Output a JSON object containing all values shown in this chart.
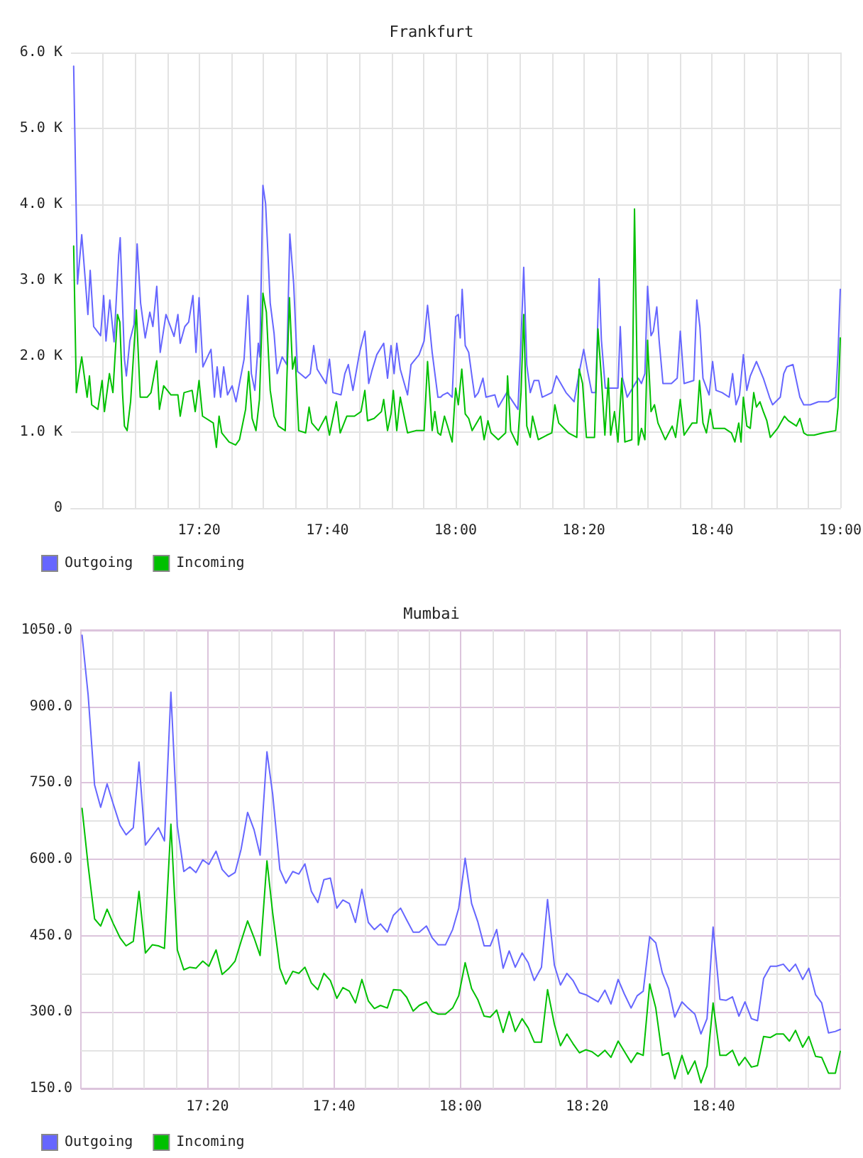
{
  "chart_data": [
    {
      "type": "line",
      "title": "Frankfurt",
      "series": [
        {
          "name": "Outgoing",
          "color": "#6666ff",
          "x": [
            17.007,
            17.017,
            17.028,
            17.038,
            17.044,
            17.05,
            17.059,
            17.077,
            17.085,
            17.091,
            17.101,
            17.112,
            17.124,
            17.128,
            17.139,
            17.144,
            17.153,
            17.164,
            17.172,
            17.181,
            17.193,
            17.205,
            17.213,
            17.223,
            17.232,
            17.247,
            17.268,
            17.278,
            17.284,
            17.296,
            17.306,
            17.317,
            17.325,
            17.333,
            17.343,
            17.364,
            17.373,
            17.38,
            17.389,
            17.397,
            17.407,
            17.419,
            17.429,
            17.45,
            17.46,
            17.469,
            17.478,
            17.487,
            17.491,
            17.499,
            17.506,
            17.518,
            17.528,
            17.536,
            17.549,
            17.561,
            17.569,
            17.579,
            17.589,
            17.61,
            17.622,
            17.631,
            17.64,
            17.663,
            17.672,
            17.681,
            17.702,
            17.712,
            17.721,
            17.733,
            17.751,
            17.764,
            17.774,
            17.782,
            17.795,
            17.813,
            17.823,
            17.832,
            17.84,
            17.847,
            17.856,
            17.875,
            17.884,
            17.905,
            17.918,
            17.927,
            17.939,
            17.954,
            17.961,
            17.967,
            17.979,
            17.991,
            18,
            18.007,
            18.012,
            18.017,
            18.025,
            18.034,
            18.043,
            18.05,
            18.059,
            18.071,
            18.079,
            18.102,
            18.111,
            18.133,
            18.162,
            18.17,
            18.177,
            18.185,
            18.194,
            18.204,
            18.216,
            18.225,
            18.25,
            18.262,
            18.287,
            18.308,
            18.323,
            18.333,
            18.342,
            18.354,
            18.364,
            18.373,
            18.379,
            18.389,
            18.422,
            18.428,
            18.434,
            18.446,
            18.475,
            18.483,
            18.492,
            18.499,
            18.508,
            18.514,
            18.523,
            18.529,
            18.539,
            18.561,
            18.576,
            18.584,
            18.594,
            18.619,
            18.627,
            18.635,
            18.643,
            18.659,
            18.668,
            18.677,
            18.693,
            18.711,
            18.72,
            18.729,
            18.738,
            18.748,
            18.757,
            18.766,
            18.782,
            18.8,
            18.816,
            18.824,
            18.844,
            18.853,
            18.861,
            18.877,
            18.895,
            18.905,
            18.922,
            18.943,
            18.969,
            18.988,
            18.994,
            19
          ],
          "values": [
            5820,
            2950,
            3600,
            2950,
            2550,
            3130,
            2390,
            2270,
            2800,
            2200,
            2740,
            2190,
            3330,
            3560,
            1960,
            1740,
            2200,
            2420,
            3480,
            2700,
            2240,
            2580,
            2390,
            2920,
            2050,
            2550,
            2260,
            2550,
            2170,
            2390,
            2450,
            2800,
            2050,
            2770,
            1860,
            2090,
            1460,
            1860,
            1460,
            1860,
            1490,
            1610,
            1400,
            1960,
            2800,
            1770,
            1550,
            2170,
            1990,
            4250,
            4010,
            2700,
            2300,
            1770,
            1990,
            1890,
            3610,
            2950,
            1800,
            1710,
            1770,
            2140,
            1830,
            1640,
            1960,
            1520,
            1490,
            1770,
            1890,
            1550,
            2070,
            2330,
            1640,
            1800,
            2020,
            2170,
            1710,
            2140,
            1770,
            2170,
            1830,
            1490,
            1890,
            2020,
            2200,
            2670,
            2050,
            1460,
            1460,
            1490,
            1520,
            1460,
            2520,
            2550,
            2240,
            2880,
            2140,
            2050,
            1710,
            1460,
            1520,
            1710,
            1460,
            1490,
            1330,
            1520,
            1300,
            2210,
            3170,
            1890,
            1520,
            1680,
            1680,
            1460,
            1520,
            1740,
            1520,
            1400,
            1830,
            2090,
            1830,
            1520,
            1520,
            3020,
            2210,
            1580,
            1580,
            2390,
            1710,
            1460,
            1710,
            1640,
            1770,
            2920,
            2270,
            2330,
            2650,
            2210,
            1640,
            1640,
            1710,
            2330,
            1640,
            1680,
            2740,
            2390,
            1710,
            1490,
            1930,
            1550,
            1520,
            1460,
            1770,
            1360,
            1490,
            2020,
            1550,
            1740,
            1930,
            1710,
            1460,
            1360,
            1460,
            1770,
            1860,
            1890,
            1460,
            1360,
            1360,
            1400,
            1400,
            1460,
            2020,
            2880
          ]
        },
        {
          "name": "Incoming",
          "color": "#00c000",
          "x": [
            17.007,
            17.014,
            17.021,
            17.028,
            17.042,
            17.048,
            17.054,
            17.07,
            17.081,
            17.087,
            17.1,
            17.109,
            17.121,
            17.127,
            17.134,
            17.139,
            17.146,
            17.155,
            17.17,
            17.18,
            17.198,
            17.208,
            17.223,
            17.23,
            17.241,
            17.26,
            17.278,
            17.284,
            17.294,
            17.315,
            17.323,
            17.333,
            17.342,
            17.37,
            17.378,
            17.385,
            17.392,
            17.411,
            17.428,
            17.438,
            17.454,
            17.462,
            17.471,
            17.481,
            17.49,
            17.499,
            17.508,
            17.518,
            17.528,
            17.539,
            17.557,
            17.568,
            17.576,
            17.583,
            17.592,
            17.61,
            17.619,
            17.626,
            17.643,
            17.663,
            17.672,
            17.69,
            17.7,
            17.717,
            17.737,
            17.754,
            17.764,
            17.771,
            17.788,
            17.807,
            17.813,
            17.823,
            17.832,
            17.838,
            17.847,
            17.856,
            17.875,
            17.897,
            17.918,
            17.927,
            17.939,
            17.946,
            17.954,
            17.961,
            17.971,
            17.979,
            17.991,
            18,
            18.007,
            18.016,
            18.025,
            18.034,
            18.043,
            18.065,
            18.074,
            18.084,
            18.092,
            18.111,
            18.13,
            18.135,
            18.143,
            18.161,
            18.17,
            18.177,
            18.185,
            18.194,
            18.2,
            18.215,
            18.237,
            18.25,
            18.258,
            18.268,
            18.293,
            18.315,
            18.321,
            18.33,
            18.34,
            18.361,
            18.37,
            18.379,
            18.388,
            18.397,
            18.403,
            18.413,
            18.422,
            18.432,
            18.44,
            18.458,
            18.465,
            18.475,
            18.483,
            18.492,
            18.499,
            18.508,
            18.517,
            18.526,
            18.545,
            18.563,
            18.572,
            18.584,
            18.594,
            18.615,
            18.627,
            18.634,
            18.643,
            18.652,
            18.662,
            18.67,
            18.699,
            18.717,
            18.726,
            18.736,
            18.742,
            18.748,
            18.757,
            18.766,
            18.775,
            18.782,
            18.791,
            18.8,
            18.809,
            18.818,
            18.837,
            18.855,
            18.865,
            18.886,
            18.895,
            18.905,
            18.914,
            18.932,
            18.956,
            18.988,
            18.994,
            19
          ],
          "values": [
            3450,
            1520,
            1770,
            1990,
            1460,
            1740,
            1360,
            1300,
            1680,
            1270,
            1770,
            1520,
            2550,
            2450,
            1520,
            1080,
            1020,
            1400,
            2610,
            1460,
            1460,
            1520,
            1940,
            1300,
            1610,
            1490,
            1490,
            1210,
            1520,
            1550,
            1270,
            1680,
            1210,
            1120,
            800,
            1210,
            990,
            870,
            830,
            900,
            1300,
            1800,
            1180,
            1020,
            1430,
            2830,
            2580,
            1550,
            1210,
            1080,
            1020,
            2770,
            1830,
            1990,
            1020,
            990,
            1330,
            1120,
            1020,
            1210,
            960,
            1400,
            990,
            1210,
            1210,
            1270,
            1550,
            1150,
            1180,
            1270,
            1430,
            1020,
            1240,
            1550,
            1020,
            1460,
            990,
            1020,
            1020,
            1930,
            1020,
            1270,
            990,
            960,
            1210,
            1080,
            870,
            1580,
            1360,
            1830,
            1240,
            1180,
            1020,
            1210,
            900,
            1150,
            990,
            900,
            990,
            1740,
            1020,
            830,
            1520,
            2550,
            1080,
            930,
            1210,
            900,
            960,
            990,
            1360,
            1120,
            990,
            930,
            1830,
            1640,
            930,
            930,
            2360,
            1710,
            960,
            1710,
            960,
            1270,
            870,
            1710,
            870,
            900,
            3940,
            830,
            1050,
            900,
            2210,
            1270,
            1360,
            1120,
            900,
            1080,
            930,
            1430,
            960,
            1120,
            1120,
            1680,
            1120,
            990,
            1300,
            1050,
            1050,
            990,
            870,
            1120,
            870,
            1460,
            1080,
            1050,
            1520,
            1330,
            1400,
            1270,
            1150,
            930,
            1050,
            1210,
            1150,
            1080,
            1180,
            990,
            960,
            960,
            990,
            1020,
            1330,
            2240
          ]
        }
      ],
      "xlim": [
        17,
        19
      ],
      "xticks": [
        {
          "value": 17.0833,
          "label": null
        },
        {
          "value": 17.1667,
          "label": null
        },
        {
          "value": 17.25,
          "label": null
        },
        {
          "value": 17.3333,
          "label": "17:20"
        },
        {
          "value": 17.4167,
          "label": null
        },
        {
          "value": 17.5,
          "label": null
        },
        {
          "value": 17.5833,
          "label": null
        },
        {
          "value": 17.6667,
          "label": "17:40"
        },
        {
          "value": 17.75,
          "label": null
        },
        {
          "value": 17.8333,
          "label": null
        },
        {
          "value": 17.9167,
          "label": null
        },
        {
          "value": 18,
          "label": "18:00"
        },
        {
          "value": 18.0833,
          "label": null
        },
        {
          "value": 18.1667,
          "label": null
        },
        {
          "value": 18.25,
          "label": null
        },
        {
          "value": 18.3333,
          "label": "18:20"
        },
        {
          "value": 18.4167,
          "label": null
        },
        {
          "value": 18.5,
          "label": null
        },
        {
          "value": 18.5833,
          "label": null
        },
        {
          "value": 18.6667,
          "label": "18:40"
        },
        {
          "value": 18.75,
          "label": null
        },
        {
          "value": 18.8333,
          "label": null
        },
        {
          "value": 18.9167,
          "label": null
        },
        {
          "value": 19,
          "label": "19:00"
        }
      ],
      "ylim": [
        0,
        6000
      ],
      "yticks": [
        0,
        {
          "value": 1000,
          "label": "1.0 K"
        },
        {
          "value": 2000,
          "label": "2.0 K"
        },
        {
          "value": 3000,
          "label": "3.0 K"
        },
        {
          "value": 4000,
          "label": "4.0 K"
        },
        {
          "value": 5000,
          "label": "5.0 K"
        },
        {
          "value": 6000,
          "label": "6.0 K"
        }
      ],
      "grid": true,
      "legend": "bottom left",
      "marker": "none",
      "line_style": "solid"
    },
    {
      "type": "line",
      "title": "Mumbai",
      "x": [
        17.003,
        17.019,
        17.036,
        17.052,
        17.069,
        17.085,
        17.103,
        17.119,
        17.138,
        17.153,
        17.17,
        17.188,
        17.204,
        17.22,
        17.237,
        17.254,
        17.271,
        17.287,
        17.303,
        17.321,
        17.337,
        17.356,
        17.372,
        17.389,
        17.406,
        17.422,
        17.439,
        17.456,
        17.472,
        17.49,
        17.505,
        17.524,
        17.54,
        17.558,
        17.574,
        17.59,
        17.607,
        17.624,
        17.64,
        17.657,
        17.674,
        17.69,
        17.707,
        17.723,
        17.74,
        17.757,
        17.773,
        17.789,
        17.807,
        17.823,
        17.842,
        17.858,
        17.875,
        17.891,
        17.91,
        17.925,
        17.941,
        17.96,
        17.979,
        17.995,
        18.012,
        18.029,
        18.045,
        18.062,
        18.078,
        18.095,
        18.112,
        18.128,
        18.144,
        18.162,
        18.178,
        18.194,
        18.213,
        18.229,
        18.247,
        18.263,
        18.28,
        18.296,
        18.313,
        18.33,
        18.346,
        18.362,
        18.38,
        18.396,
        18.415,
        18.431,
        18.449,
        18.465,
        18.481,
        18.498,
        18.514,
        18.531,
        18.548,
        18.564,
        18.583,
        18.599,
        18.617,
        18.633,
        18.649,
        18.665,
        18.683,
        18.699,
        18.716,
        18.733,
        18.749,
        18.766,
        18.782,
        18.798,
        18.816,
        18.832,
        18.85,
        18.866,
        18.882,
        18.901,
        18.917,
        18.935,
        18.951,
        18.969,
        18.987,
        19
      ],
      "series": [
        {
          "name": "Outgoing",
          "color": "#6666ff",
          "values": [
            1040,
            923,
            746,
            702,
            748,
            709,
            667,
            648,
            662,
            791,
            628,
            646,
            662,
            636,
            928,
            665,
            576,
            585,
            574,
            599,
            590,
            616,
            580,
            566,
            574,
            620,
            692,
            658,
            608,
            811,
            728,
            580,
            553,
            576,
            571,
            591,
            537,
            515,
            560,
            563,
            504,
            520,
            513,
            476,
            541,
            476,
            462,
            473,
            457,
            490,
            504,
            481,
            457,
            457,
            469,
            446,
            432,
            432,
            462,
            504,
            602,
            513,
            478,
            430,
            430,
            462,
            386,
            420,
            388,
            416,
            397,
            362,
            388,
            521,
            392,
            353,
            376,
            362,
            338,
            334,
            327,
            320,
            343,
            316,
            364,
            336,
            308,
            332,
            341,
            448,
            436,
            378,
            346,
            290,
            320,
            308,
            296,
            257,
            287,
            467,
            325,
            323,
            330,
            292,
            320,
            287,
            283,
            366,
            390,
            390,
            394,
            380,
            394,
            364,
            386,
            334,
            318,
            259,
            262,
            266
          ]
        },
        {
          "name": "Incoming",
          "color": "#00c000",
          "values": [
            700,
            588,
            483,
            469,
            502,
            474,
            446,
            430,
            439,
            537,
            416,
            432,
            430,
            425,
            669,
            422,
            383,
            388,
            386,
            400,
            390,
            422,
            374,
            385,
            400,
            439,
            479,
            446,
            411,
            597,
            495,
            386,
            355,
            380,
            376,
            388,
            357,
            344,
            376,
            362,
            327,
            348,
            341,
            318,
            364,
            322,
            307,
            313,
            308,
            344,
            343,
            329,
            302,
            313,
            320,
            301,
            296,
            296,
            308,
            332,
            397,
            346,
            325,
            292,
            290,
            304,
            260,
            301,
            262,
            287,
            269,
            241,
            241,
            344,
            276,
            234,
            257,
            238,
            220,
            226,
            222,
            213,
            225,
            211,
            243,
            223,
            201,
            220,
            215,
            355,
            308,
            215,
            220,
            169,
            215,
            178,
            204,
            161,
            194,
            318,
            215,
            215,
            225,
            195,
            211,
            192,
            195,
            252,
            250,
            257,
            257,
            243,
            264,
            231,
            252,
            213,
            211,
            180,
            180,
            223
          ]
        }
      ],
      "xlim": [
        17,
        19
      ],
      "xticks": [
        {
          "value": 17.0833,
          "label": null
        },
        {
          "value": 17.1667,
          "label": null
        },
        {
          "value": 17.25,
          "label": null
        },
        {
          "value": 17.3333,
          "label": "17:20"
        },
        {
          "value": 17.4167,
          "label": null
        },
        {
          "value": 17.5,
          "label": null
        },
        {
          "value": 17.5833,
          "label": null
        },
        {
          "value": 17.6667,
          "label": "17:40"
        },
        {
          "value": 17.75,
          "label": null
        },
        {
          "value": 17.8333,
          "label": null
        },
        {
          "value": 17.9167,
          "label": null
        },
        {
          "value": 18,
          "label": "18:00"
        },
        {
          "value": 18.0833,
          "label": null
        },
        {
          "value": 18.1667,
          "label": null
        },
        {
          "value": 18.25,
          "label": null
        },
        {
          "value": 18.3333,
          "label": "18:20"
        },
        {
          "value": 18.4167,
          "label": null
        },
        {
          "value": 18.5,
          "label": null
        },
        {
          "value": 18.5833,
          "label": null
        },
        {
          "value": 18.6667,
          "label": "18:40"
        },
        {
          "value": 18.75,
          "label": null
        },
        {
          "value": 18.8333,
          "label": null
        },
        {
          "value": 18.9167,
          "label": null
        }
      ],
      "ylim": [
        150,
        1050
      ],
      "yticks": [
        {
          "value": 150,
          "label": "150.0"
        },
        {
          "value": 225,
          "label": null
        },
        {
          "value": 300,
          "label": "300.0"
        },
        {
          "value": 375,
          "label": null
        },
        {
          "value": 450,
          "label": "450.0"
        },
        {
          "value": 525,
          "label": null
        },
        {
          "value": 600,
          "label": "600.0"
        },
        {
          "value": 675,
          "label": null
        },
        {
          "value": 750,
          "label": "750.0"
        },
        {
          "value": 825,
          "label": null
        },
        {
          "value": 900,
          "label": "900.0"
        },
        {
          "value": 975,
          "label": null
        },
        {
          "value": 1050,
          "label": "1050.0"
        }
      ],
      "grid": true,
      "legend": "bottom left",
      "marker": "none",
      "line_style": "solid"
    }
  ]
}
